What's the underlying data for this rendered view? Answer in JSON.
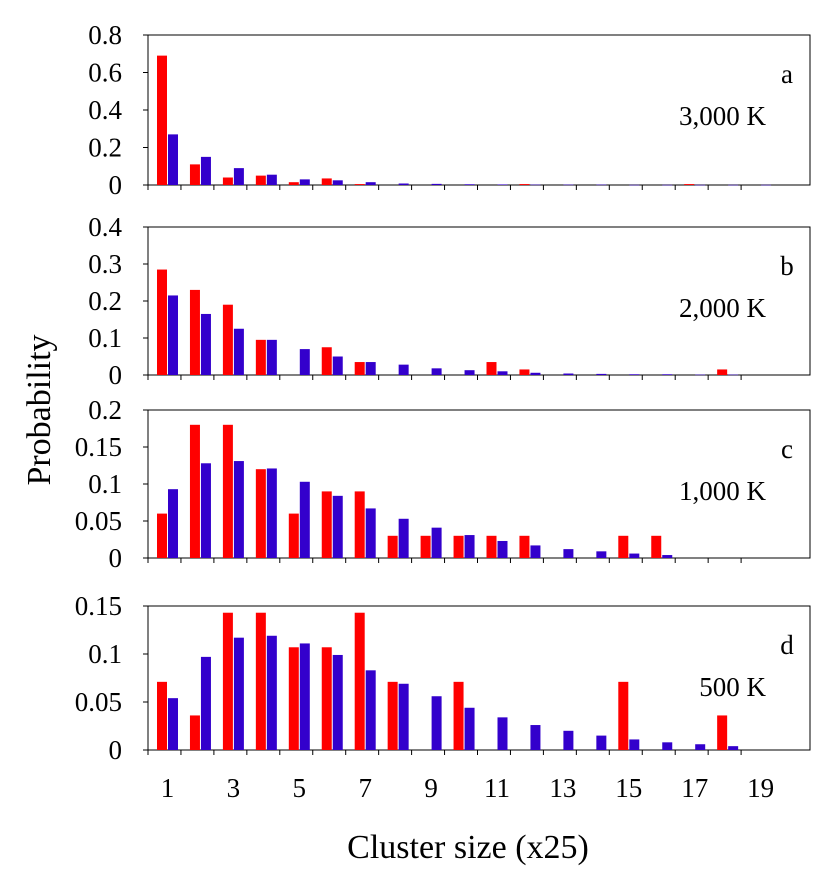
{
  "colors": {
    "series_red": "#ff0000",
    "series_blue": "#3300cc",
    "frame": "#000000"
  },
  "figure": {
    "xlabel": "Cluster size (x25)",
    "ylabel": "Probability"
  },
  "chart_data": [
    {
      "type": "bar",
      "panel": "a",
      "label": "3,000 K",
      "categories": [
        1,
        2,
        3,
        4,
        5,
        6,
        7,
        8,
        9,
        10,
        11,
        12,
        13,
        14,
        15,
        16,
        17,
        18,
        19
      ],
      "ylim": [
        0,
        0.8
      ],
      "yticks": [
        {
          "v": 0,
          "t": "0"
        },
        {
          "v": 0.2,
          "t": "0.2"
        },
        {
          "v": 0.4,
          "t": "0.4"
        },
        {
          "v": 0.6,
          "t": "0.6"
        },
        {
          "v": 0.8,
          "t": "0.8"
        }
      ],
      "series": [
        {
          "name": "red",
          "color": "#ff0000",
          "values": [
            0.69,
            0.11,
            0.04,
            0.05,
            0.015,
            0.035,
            0.005,
            0,
            0,
            0,
            0,
            0.005,
            0,
            0,
            0,
            0,
            0.005,
            0,
            0
          ]
        },
        {
          "name": "blue",
          "color": "#3300cc",
          "values": [
            0.27,
            0.15,
            0.09,
            0.055,
            0.03,
            0.025,
            0.015,
            0.008,
            0.006,
            0.004,
            0.003,
            0.002,
            0.002,
            0.002,
            0.001,
            0.001,
            0.001,
            0.001,
            0.001
          ]
        }
      ]
    },
    {
      "type": "bar",
      "panel": "b",
      "label": "2,000 K",
      "categories": [
        1,
        2,
        3,
        4,
        5,
        6,
        7,
        8,
        9,
        10,
        11,
        12,
        13,
        14,
        15,
        16,
        17,
        18,
        19
      ],
      "ylim": [
        0,
        0.4
      ],
      "yticks": [
        {
          "v": 0,
          "t": "0"
        },
        {
          "v": 0.1,
          "t": "0.1"
        },
        {
          "v": 0.2,
          "t": "0.2"
        },
        {
          "v": 0.3,
          "t": "0.3"
        },
        {
          "v": 0.4,
          "t": "0.4"
        }
      ],
      "series": [
        {
          "name": "red",
          "color": "#ff0000",
          "values": [
            0.285,
            0.23,
            0.19,
            0.095,
            0,
            0.075,
            0.035,
            0,
            0,
            0,
            0.035,
            0.015,
            0,
            0,
            0,
            0,
            0,
            0.015,
            0
          ]
        },
        {
          "name": "blue",
          "color": "#3300cc",
          "values": [
            0.215,
            0.165,
            0.125,
            0.095,
            0.07,
            0.05,
            0.035,
            0.028,
            0.018,
            0.013,
            0.01,
            0.006,
            0.004,
            0.003,
            0.002,
            0.002,
            0.001,
            0.001,
            0
          ]
        }
      ]
    },
    {
      "type": "bar",
      "panel": "c",
      "label": "1,000 K",
      "categories": [
        1,
        2,
        3,
        4,
        5,
        6,
        7,
        8,
        9,
        10,
        11,
        12,
        13,
        14,
        15,
        16,
        17,
        18,
        19
      ],
      "ylim": [
        0,
        0.2
      ],
      "yticks": [
        {
          "v": 0,
          "t": "0"
        },
        {
          "v": 0.05,
          "t": "0.05"
        },
        {
          "v": 0.1,
          "t": "0.1"
        },
        {
          "v": 0.15,
          "t": "0.15"
        },
        {
          "v": 0.2,
          "t": "0.2"
        }
      ],
      "series": [
        {
          "name": "red",
          "color": "#ff0000",
          "values": [
            0.06,
            0.18,
            0.18,
            0.12,
            0.06,
            0.09,
            0.09,
            0.03,
            0.03,
            0.03,
            0.03,
            0.03,
            0,
            0,
            0.03,
            0.03,
            0,
            0,
            0
          ]
        },
        {
          "name": "blue",
          "color": "#3300cc",
          "values": [
            0.093,
            0.128,
            0.131,
            0.121,
            0.103,
            0.084,
            0.067,
            0.053,
            0.041,
            0.031,
            0.023,
            0.017,
            0.012,
            0.009,
            0.006,
            0.004,
            0,
            0,
            0
          ]
        }
      ]
    },
    {
      "type": "bar",
      "panel": "d",
      "label": "500 K",
      "categories": [
        1,
        2,
        3,
        4,
        5,
        6,
        7,
        8,
        9,
        10,
        11,
        12,
        13,
        14,
        15,
        16,
        17,
        18,
        19
      ],
      "ylim": [
        0,
        0.15
      ],
      "yticks": [
        {
          "v": 0,
          "t": "0"
        },
        {
          "v": 0.05,
          "t": "0.05"
        },
        {
          "v": 0.1,
          "t": "0.1"
        },
        {
          "v": 0.15,
          "t": "0.15"
        }
      ],
      "xticks": [
        "1",
        "3",
        "5",
        "7",
        "9",
        "11",
        "13",
        "15",
        "17",
        "19"
      ],
      "series": [
        {
          "name": "red",
          "color": "#ff0000",
          "values": [
            0.071,
            0.036,
            0.143,
            0.143,
            0.107,
            0.107,
            0.143,
            0.071,
            0,
            0.071,
            0,
            0,
            0,
            0,
            0.071,
            0,
            0,
            0.036,
            0
          ]
        },
        {
          "name": "blue",
          "color": "#3300cc",
          "values": [
            0.054,
            0.097,
            0.117,
            0.119,
            0.111,
            0.099,
            0.083,
            0.069,
            0.056,
            0.044,
            0.034,
            0.026,
            0.02,
            0.015,
            0.011,
            0.008,
            0.006,
            0.004,
            0
          ]
        }
      ]
    }
  ]
}
